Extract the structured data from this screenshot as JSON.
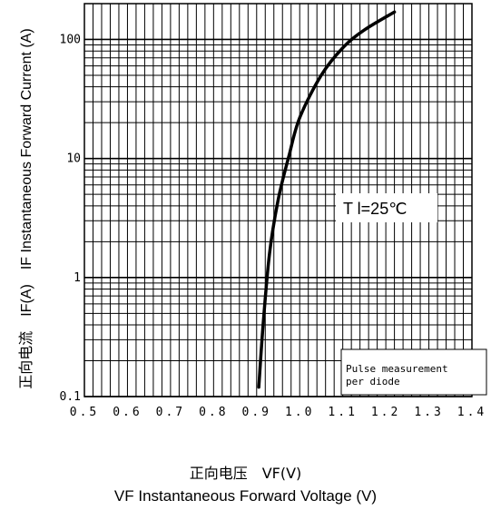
{
  "chart_data": {
    "type": "line",
    "x_scale": "linear",
    "y_scale": "log",
    "xlim": [
      0.5,
      1.4
    ],
    "ylim": [
      0.1,
      200
    ],
    "x_ticks": [
      0.5,
      0.6,
      0.7,
      0.8,
      0.9,
      1.0,
      1.1,
      1.2,
      1.3,
      1.4
    ],
    "x_tick_labels": [
      "0.5",
      "0.6",
      "0.7",
      "0.8",
      "0.9",
      "1.0",
      "1.1",
      "1.2",
      "1.3",
      "1.4"
    ],
    "y_ticks": [
      0.1,
      1,
      10,
      100
    ],
    "y_tick_labels": [
      "0.1",
      "1",
      "10",
      "100"
    ],
    "grid": true,
    "series": [
      {
        "color": "#000000",
        "x": [
          0.905,
          0.915,
          0.93,
          0.95,
          0.975,
          1.0,
          1.05,
          1.1,
          1.15,
          1.22
        ],
        "y": [
          0.12,
          0.4,
          1.6,
          4.5,
          10.5,
          22,
          50,
          85,
          120,
          170
        ]
      }
    ],
    "annotation": "T l=25℃",
    "note": [
      "Pulse measurement",
      "per diode"
    ],
    "xlabel_cn": "正向电压　VF(V)",
    "xlabel": "VF  Instantaneous Forward Voltage (V)",
    "ylabel_cn": "正向电流　IF(A)",
    "ylabel": "IF Instantaneous Forward Current (A)"
  }
}
